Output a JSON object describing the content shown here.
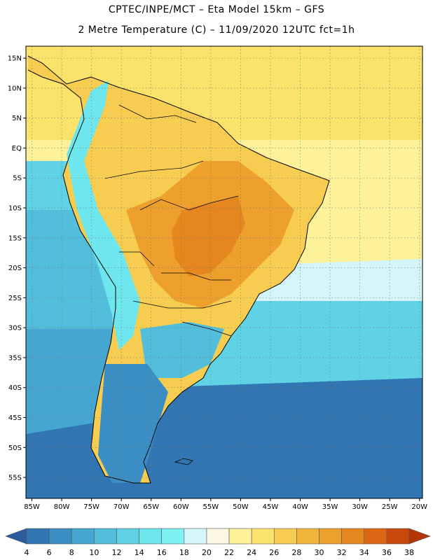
{
  "title": {
    "line1": "CPTEC/INPE/MCT –  Eta Model 15km – GFS",
    "line2": "2 Metre Temperature (C) – 11/09/2020 12UTC fct=1h"
  },
  "axes": {
    "lat_labels": [
      "15N",
      "10N",
      "5N",
      "EQ",
      "5S",
      "10S",
      "15S",
      "20S",
      "25S",
      "30S",
      "35S",
      "40S",
      "45S",
      "50S",
      "55S"
    ],
    "lon_labels": [
      "85W",
      "80W",
      "75W",
      "70W",
      "65W",
      "60W",
      "55W",
      "50W",
      "45W",
      "40W",
      "35W",
      "30W",
      "25W",
      "20W"
    ]
  },
  "colorbar": {
    "labels": [
      "4",
      "6",
      "8",
      "10",
      "12",
      "14",
      "16",
      "18",
      "20",
      "22",
      "24",
      "26",
      "28",
      "30",
      "32",
      "34",
      "36",
      "38"
    ],
    "colors": [
      "#2b5d9e",
      "#3176b3",
      "#3a8ec4",
      "#45a6d1",
      "#52bedc",
      "#5fd3e5",
      "#6ee6ee",
      "#7ef2f2",
      "#d4f6fb",
      "#fdf6e3",
      "#fdf19a",
      "#fbe26a",
      "#f6cd50",
      "#f1b43b",
      "#eda02c",
      "#e6861f",
      "#dc6614",
      "#c9480c",
      "#b33607"
    ]
  },
  "map": {
    "ocean_colors": {
      "tropical_atlantic": "#fbe26a",
      "warm_atlantic": "#fdf19a",
      "mid_atlantic": "#d4f6fb",
      "south_atlantic": "#5fd3e5",
      "cold_ocean": "#3176b3",
      "pacific_warm": "#52bedc",
      "pacific_cold": "#45a6d1"
    },
    "land_colors": {
      "north": "#f6cd50",
      "interior_hot": "#eda02c",
      "hotspot": "#e6861f",
      "andes": "#6ee6ee",
      "patagonia": "#3a8ec4",
      "pampa": "#52bedc"
    }
  }
}
